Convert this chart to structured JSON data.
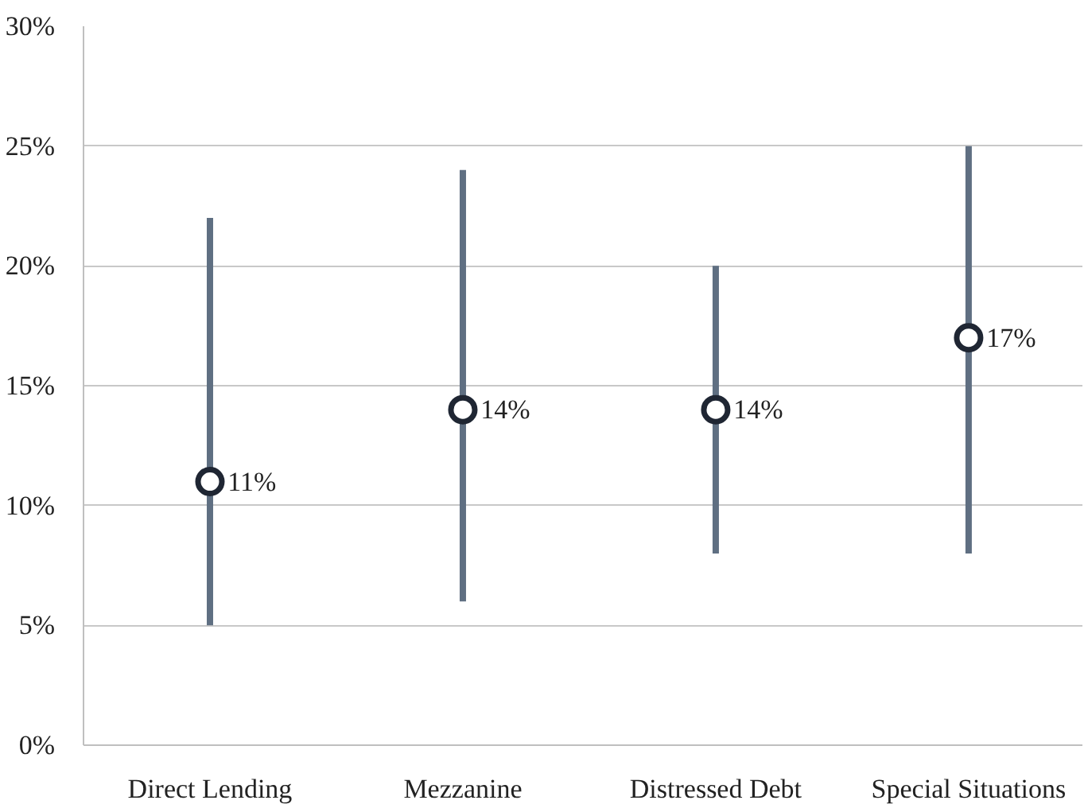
{
  "chart_data": {
    "type": "scatter",
    "categories": [
      "Direct Lending",
      "Mezzanine",
      "Distressed Debt",
      "Special Situations"
    ],
    "values": [
      11,
      14,
      14,
      17
    ],
    "errors": [
      [
        5,
        22
      ],
      [
        6,
        24
      ],
      [
        8,
        20
      ],
      [
        8,
        25
      ]
    ],
    "value_labels": [
      "11%",
      "14%",
      "14%",
      "17%"
    ],
    "color": "#1f2633",
    "ylim": [
      0,
      30
    ],
    "yticks": [
      {
        "value": 0,
        "label": "0%"
      },
      {
        "value": 5,
        "label": "5%"
      },
      {
        "value": 10,
        "label": "10%"
      },
      {
        "value": 15,
        "label": "15%"
      },
      {
        "value": 20,
        "label": "20%"
      },
      {
        "value": 25,
        "label": "25%"
      },
      {
        "value": 30,
        "label": "30%"
      }
    ],
    "grid": "y",
    "marker": "circle"
  }
}
